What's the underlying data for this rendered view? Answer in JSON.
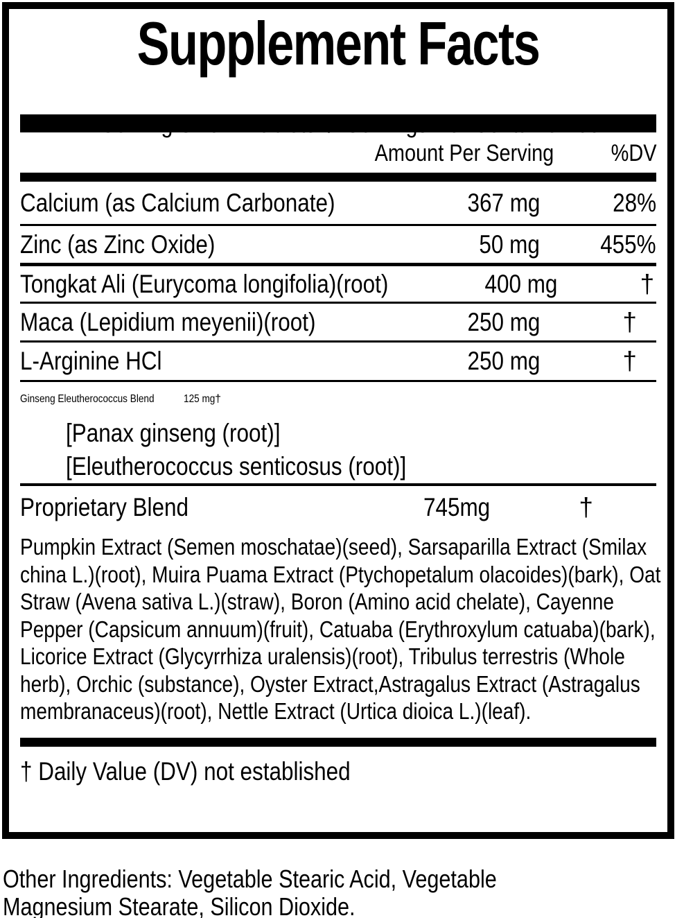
{
  "label": {
    "title": "Supplement Facts",
    "serving_line": "Serving Size: 2 Tablets  /  Servings Per Container: 30",
    "columns": {
      "amount": "Amount Per Serving",
      "dv": "%DV"
    },
    "rows": [
      {
        "name": "Calcium (as Calcium Carbonate)",
        "amount": "367 mg",
        "dv": "28%"
      },
      {
        "name": "Zinc (as Zinc Oxide)",
        "amount": "50 mg",
        "dv": "455%"
      },
      {
        "name": "Tongkat Ali (Eurycoma longifolia)(root)",
        "amount": "400 mg",
        "dv": "†"
      },
      {
        "name": "Maca (Lepidium meyenii)(root)",
        "amount": "250 mg",
        "dv": "†"
      },
      {
        "name": "L-Arginine HCl",
        "amount": "250 mg",
        "dv": "†"
      },
      {
        "name": "Ginseng Eleutherococcus Blend",
        "amount": "125 mg",
        "dv": "†",
        "sub_items": [
          "[Panax ginseng (root)]",
          "[Eleutherococcus senticosus (root)]"
        ]
      }
    ],
    "proprietary_blend": {
      "name": "Proprietary Blend",
      "amount": "745mg",
      "dv": "†",
      "ingredients": "Pumpkin Extract (Semen moschatae)(seed), Sarsaparilla Extract (Smilax china L.)(root), Muira Puama Extract (Ptychopetalum olacoides)(bark), Oat Straw (Avena sativa L.)(straw), Boron (Amino acid chelate), Cayenne Pepper (Capsicum annuum)(fruit), Catuaba (Erythroxylum catuaba)(bark), Licorice Extract (Glycyrrhiza uralensis)(root), Tribulus terrestris (Whole herb), Orchic (substance), Oyster Extract,Astragalus Extract (Astragalus membranaceus)(root), Nettle Extract (Urtica dioica L.)(leaf)."
    },
    "footnote": "† Daily Value (DV) not established",
    "other_ingredients": "Other Ingredients: Vegetable Stearic Acid, Vegetable Magnesium Stearate, Silicon Dioxide.",
    "colors": {
      "text": "#000000",
      "background": "#ffffff"
    }
  }
}
